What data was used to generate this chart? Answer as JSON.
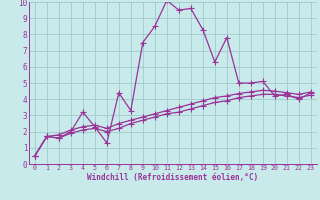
{
  "background_color": "#c8eaea",
  "grid_color": "#a0cccc",
  "line_color": "#993399",
  "xlim": [
    -0.5,
    23.5
  ],
  "ylim": [
    0,
    10
  ],
  "xlabel": "Windchill (Refroidissement éolien,°C)",
  "xticks": [
    0,
    1,
    2,
    3,
    4,
    5,
    6,
    7,
    8,
    9,
    10,
    11,
    12,
    13,
    14,
    15,
    16,
    17,
    18,
    19,
    20,
    21,
    22,
    23
  ],
  "yticks": [
    0,
    1,
    2,
    3,
    4,
    5,
    6,
    7,
    8,
    9,
    10
  ],
  "series_peak_x": [
    0,
    1,
    2,
    3,
    4,
    5,
    6,
    7,
    8,
    9,
    10,
    11,
    12,
    13,
    14,
    15,
    16,
    17,
    18,
    19,
    20,
    21,
    22,
    23
  ],
  "series_peak_y": [
    0.5,
    1.7,
    1.6,
    2.0,
    3.2,
    2.3,
    1.3,
    4.4,
    3.3,
    7.5,
    8.5,
    10.1,
    9.5,
    9.6,
    8.3,
    6.3,
    7.8,
    5.0,
    5.0,
    5.1,
    4.2,
    4.3,
    4.0,
    4.4
  ],
  "series_upper_x": [
    0,
    1,
    2,
    3,
    4,
    5,
    6,
    7,
    8,
    9,
    10,
    11,
    12,
    13,
    14,
    15,
    16,
    17,
    18,
    19,
    20,
    21,
    22,
    23
  ],
  "series_upper_y": [
    0.5,
    1.7,
    1.8,
    2.1,
    2.3,
    2.4,
    2.2,
    2.5,
    2.7,
    2.9,
    3.1,
    3.3,
    3.5,
    3.7,
    3.9,
    4.1,
    4.2,
    4.35,
    4.45,
    4.55,
    4.5,
    4.4,
    4.3,
    4.45
  ],
  "series_lower_x": [
    0,
    1,
    2,
    3,
    4,
    5,
    6,
    7,
    8,
    9,
    10,
    11,
    12,
    13,
    14,
    15,
    16,
    17,
    18,
    19,
    20,
    21,
    22,
    23
  ],
  "series_lower_y": [
    0.5,
    1.7,
    1.6,
    1.9,
    2.1,
    2.2,
    2.0,
    2.2,
    2.5,
    2.7,
    2.9,
    3.1,
    3.2,
    3.4,
    3.6,
    3.8,
    3.9,
    4.1,
    4.2,
    4.3,
    4.3,
    4.2,
    4.1,
    4.25
  ],
  "marker": "+",
  "markersize": 4,
  "linewidth": 0.9
}
